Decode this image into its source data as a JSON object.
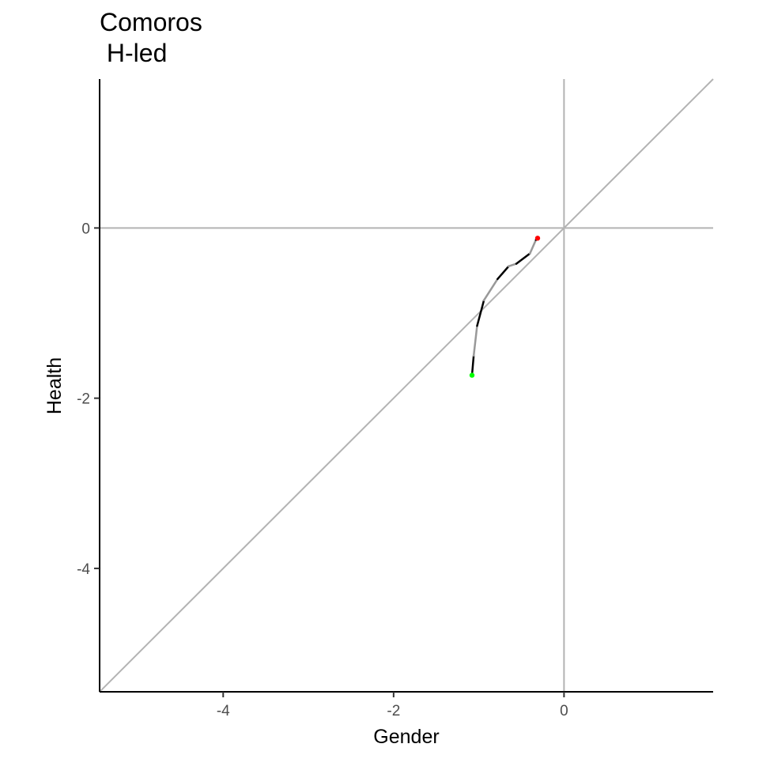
{
  "chart_data": {
    "type": "line",
    "title": "Comoros",
    "subtitle": " H-led",
    "xlabel": "Gender",
    "ylabel": "Health",
    "xlim": [
      -5.45,
      1.75
    ],
    "ylim": [
      -5.45,
      1.75
    ],
    "xticks": [
      -4,
      -2,
      0
    ],
    "yticks": [
      -4,
      -2,
      0
    ],
    "xtick_labels": [
      "-4",
      "-2",
      "0"
    ],
    "ytick_labels": [
      "-4",
      "-2",
      "0"
    ],
    "grid": false,
    "reference_lines": {
      "horizontal_y": 0,
      "vertical_x": 0,
      "diagonal": "y = x",
      "color": "#b3b3b3"
    },
    "series": [
      {
        "values": [
          {
            "x": -1.08,
            "y": -1.73
          },
          {
            "x": -1.06,
            "y": -1.5
          },
          {
            "x": -1.02,
            "y": -1.15
          },
          {
            "x": -0.94,
            "y": -0.85
          },
          {
            "x": -0.78,
            "y": -0.6
          },
          {
            "x": -0.65,
            "y": -0.45
          },
          {
            "x": -0.56,
            "y": -0.42
          },
          {
            "x": -0.4,
            "y": -0.3
          },
          {
            "x": -0.33,
            "y": -0.14
          },
          {
            "x": -0.31,
            "y": -0.12
          }
        ],
        "segment_colors": [
          "#000000",
          "#999999",
          "#000000",
          "#999999",
          "#000000",
          "#999999",
          "#000000",
          "#999999",
          "#000000"
        ],
        "start_marker_color": "#00ff00",
        "end_marker_color": "#ff0000"
      }
    ]
  }
}
